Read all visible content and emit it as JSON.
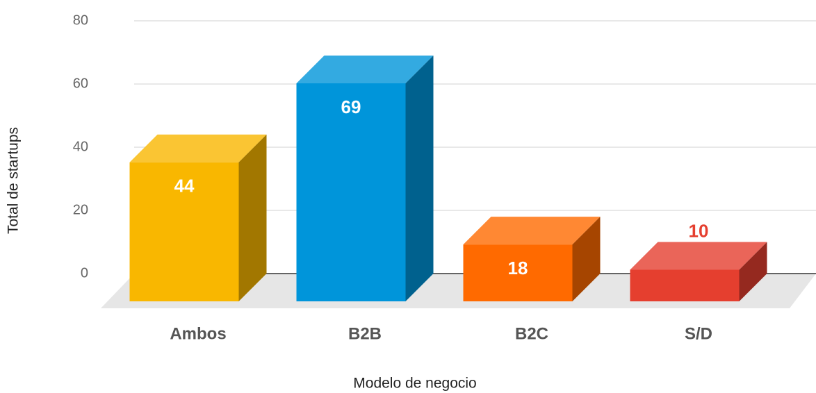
{
  "chart_data": {
    "type": "bar3d",
    "x_label": "Modelo de negocio",
    "y_label": "Total de startups",
    "categories": [
      "Ambos",
      "B2B",
      "B2C",
      "S/D"
    ],
    "values": [
      44,
      69,
      18,
      10
    ],
    "colors": [
      "#f9b700",
      "#0095da",
      "#ff6a00",
      "#e53f2f"
    ],
    "ylim": [
      0,
      80
    ],
    "yticks": [
      0,
      20,
      40,
      60,
      80
    ],
    "grid": true
  }
}
